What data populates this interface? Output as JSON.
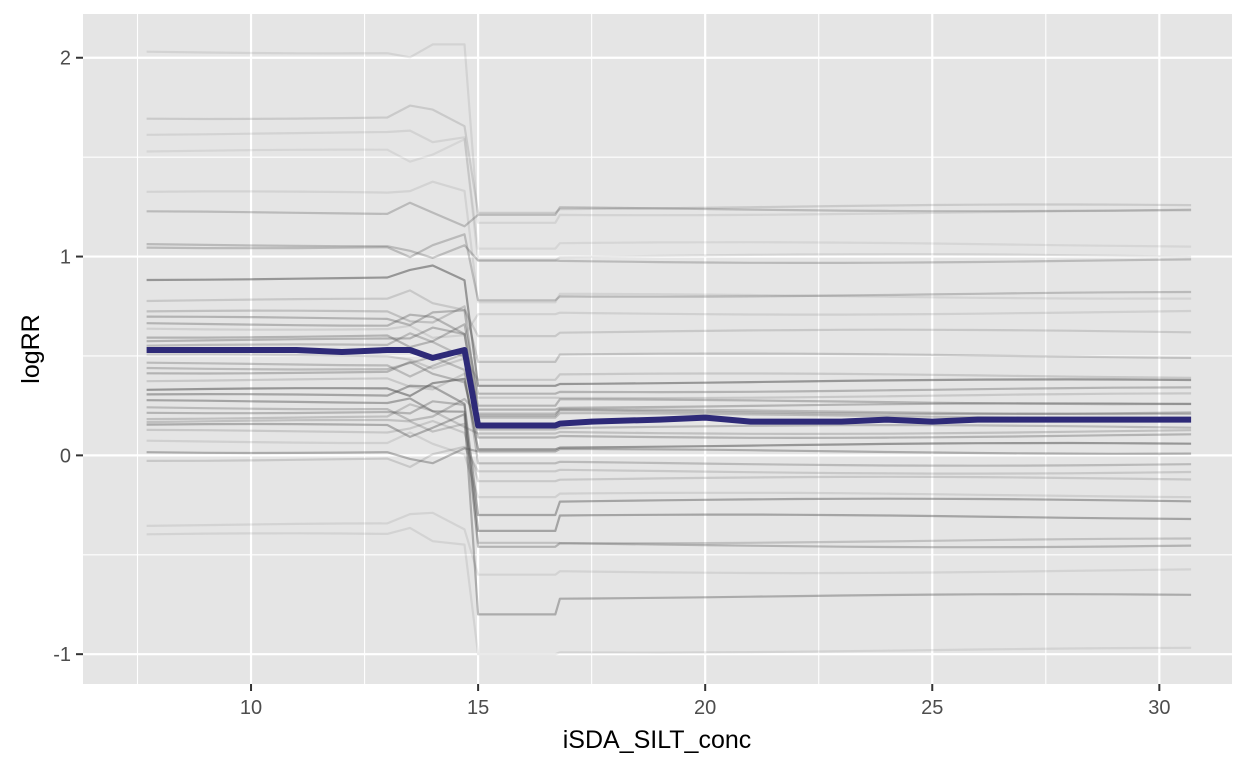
{
  "chart_data": {
    "type": "line",
    "title": "",
    "xlabel": "iSDA_SILT_conc",
    "ylabel": "logRR",
    "xlim": [
      6.3,
      31.6
    ],
    "ylim": [
      -1.15,
      2.22
    ],
    "x_ticks": [
      10,
      15,
      20,
      25,
      30
    ],
    "x_tick_labels": [
      "10",
      "15",
      "20",
      "25",
      "30"
    ],
    "y_ticks": [
      -1,
      0,
      1,
      2
    ],
    "y_tick_labels": [
      "-1",
      "0",
      "1",
      "2"
    ],
    "grid": true,
    "panel_background": "#e5e5e5",
    "grid_color": "#ffffff",
    "mean_color": "#2e2a78",
    "individual_color": "#555555",
    "x": [
      7.7,
      9,
      10,
      11,
      12,
      13,
      13.5,
      14,
      14.7,
      15,
      15.5,
      16.7,
      16.8,
      17.5,
      19,
      20,
      21,
      22,
      23,
      24,
      25,
      26,
      27,
      28,
      29,
      30.7
    ],
    "mean": [
      0.53,
      0.53,
      0.53,
      0.53,
      0.52,
      0.53,
      0.53,
      0.49,
      0.53,
      0.15,
      0.15,
      0.15,
      0.16,
      0.17,
      0.18,
      0.19,
      0.17,
      0.17,
      0.17,
      0.18,
      0.17,
      0.18,
      0.18,
      0.18,
      0.18,
      0.18
    ],
    "series": [
      {
        "left": 2.03,
        "right": 1.22,
        "alpha": 0.12,
        "jump": 0.05
      },
      {
        "left": 1.7,
        "right": 1.25,
        "alpha": 0.18,
        "jump": 0.03
      },
      {
        "left": 1.62,
        "right": 1.0,
        "alpha": 0.12,
        "jump": 0.02
      },
      {
        "left": 1.53,
        "right": 1.06,
        "alpha": 0.1,
        "jump": 0.02
      },
      {
        "left": 1.32,
        "right": 0.8,
        "alpha": 0.12,
        "jump": 0.03
      },
      {
        "left": 1.22,
        "right": 1.24,
        "alpha": 0.3,
        "jump": 0.03
      },
      {
        "left": 1.06,
        "right": 0.98,
        "alpha": 0.3,
        "jump": 0.0
      },
      {
        "left": 1.05,
        "right": 0.81,
        "alpha": 0.3,
        "jump": 0.03
      },
      {
        "left": 0.89,
        "right": 0.37,
        "alpha": 0.55,
        "jump": 0.02
      },
      {
        "left": 0.78,
        "right": 0.62,
        "alpha": 0.2,
        "jump": 0.02
      },
      {
        "left": 0.72,
        "right": 0.5,
        "alpha": 0.25,
        "jump": 0.03
      },
      {
        "left": 0.69,
        "right": 0.27,
        "alpha": 0.35,
        "jump": 0.02
      },
      {
        "left": 0.66,
        "right": 0.22,
        "alpha": 0.35,
        "jump": 0.02
      },
      {
        "left": 0.64,
        "right": 0.72,
        "alpha": 0.15,
        "jump": 0.01
      },
      {
        "left": 0.6,
        "right": 0.33,
        "alpha": 0.35,
        "jump": 0.02
      },
      {
        "left": 0.58,
        "right": 0.25,
        "alpha": 0.35,
        "jump": 0.02
      },
      {
        "left": 0.55,
        "right": 0.14,
        "alpha": 0.3,
        "jump": 0.01
      },
      {
        "left": 0.5,
        "right": 0.4,
        "alpha": 0.2,
        "jump": 0.02
      },
      {
        "left": 0.46,
        "right": 0.2,
        "alpha": 0.3,
        "jump": 0.01
      },
      {
        "left": 0.44,
        "right": -0.04,
        "alpha": 0.3,
        "jump": 0.0
      },
      {
        "left": 0.42,
        "right": 0.1,
        "alpha": 0.35,
        "jump": 0.01
      },
      {
        "left": 0.38,
        "right": 0.3,
        "alpha": 0.2,
        "jump": 0.01
      },
      {
        "left": 0.33,
        "right": 0.05,
        "alpha": 0.55,
        "jump": 0.02
      },
      {
        "left": 0.3,
        "right": -0.23,
        "alpha": 0.45,
        "jump": 0.07
      },
      {
        "left": 0.27,
        "right": -0.31,
        "alpha": 0.45,
        "jump": 0.07
      },
      {
        "left": 0.24,
        "right": 0.22,
        "alpha": 0.3,
        "jump": 0.01
      },
      {
        "left": 0.22,
        "right": -0.45,
        "alpha": 0.35,
        "jump": 0.01
      },
      {
        "left": 0.19,
        "right": 0.12,
        "alpha": 0.25,
        "jump": 0.01
      },
      {
        "left": 0.17,
        "right": -0.43,
        "alpha": 0.25,
        "jump": 0.01
      },
      {
        "left": 0.15,
        "right": -0.71,
        "alpha": 0.4,
        "jump": 0.09
      },
      {
        "left": 0.12,
        "right": -0.12,
        "alpha": 0.2,
        "jump": 0.01
      },
      {
        "left": 0.07,
        "right": -0.2,
        "alpha": 0.15,
        "jump": 0.01
      },
      {
        "left": 0.02,
        "right": 0.02,
        "alpha": 0.4,
        "jump": 0.0
      },
      {
        "left": -0.02,
        "right": -0.08,
        "alpha": 0.2,
        "jump": 0.0
      },
      {
        "left": -0.35,
        "right": -0.58,
        "alpha": 0.12,
        "jump": 0.02
      },
      {
        "left": -0.4,
        "right": -0.98,
        "alpha": 0.12,
        "jump": 0.02
      }
    ]
  }
}
